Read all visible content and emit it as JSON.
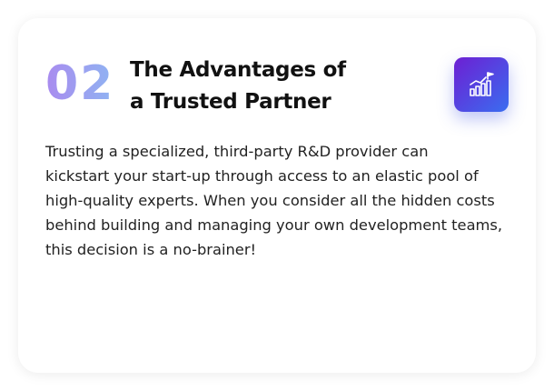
{
  "card": {
    "step_number": "02",
    "title_lines": [
      "The Advantages of",
      "a Trusted Partner"
    ],
    "icon": "growth-chart-flag-icon",
    "description_lines": [
      "Trusting a specialized, third-party R&D provider can",
      "kickstart your start-up through access to an elastic pool of",
      "high-quality experts. When you consider all the hidden costs",
      "behind building and managing your own development teams,",
      "this decision is a no-brainer!"
    ]
  },
  "colors": {
    "number_gradient_start": "#a98bef",
    "number_gradient_end": "#8fb4f2",
    "icon_gradient_start": "#6d1fd3",
    "icon_gradient_end": "#3a6df0",
    "title": "#111111",
    "text": "#222222"
  }
}
